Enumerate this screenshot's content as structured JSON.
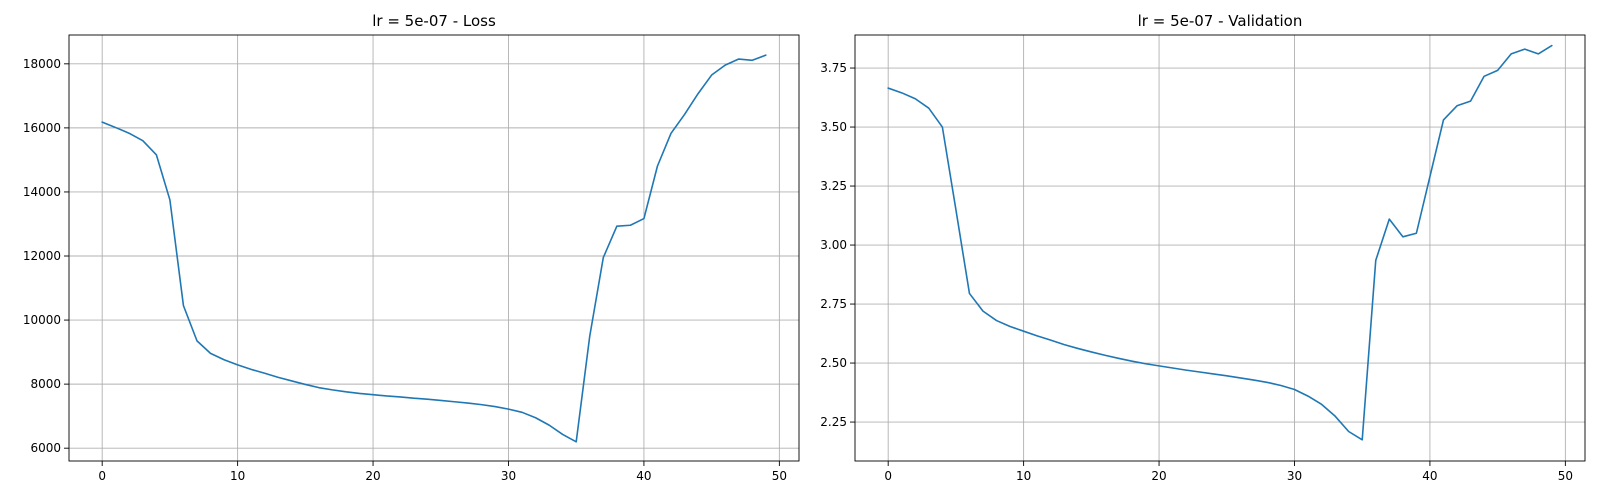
{
  "chart_data": [
    {
      "type": "line",
      "title": "lr = 5e-07 - Loss",
      "xlabel": "",
      "ylabel": "",
      "xlim": [
        -2.45,
        51.45
      ],
      "ylim": [
        5600,
        18900
      ],
      "xticks": [
        0,
        10,
        20,
        30,
        40,
        50
      ],
      "xtick_labels": [
        "0",
        "10",
        "20",
        "30",
        "40",
        "50"
      ],
      "yticks": [
        6000,
        8000,
        10000,
        12000,
        14000,
        16000,
        18000
      ],
      "ytick_labels": [
        "6000",
        "8000",
        "10000",
        "12000",
        "14000",
        "16000",
        "18000"
      ],
      "grid": true,
      "color": "#1f77b4",
      "series": [
        {
          "x": [
            0,
            1,
            2,
            3,
            4,
            5,
            6,
            7,
            8,
            9,
            10,
            11,
            12,
            13,
            14,
            15,
            16,
            17,
            18,
            19,
            20,
            21,
            22,
            23,
            24,
            25,
            26,
            27,
            28,
            29,
            30,
            31,
            32,
            33,
            34,
            35,
            36,
            37,
            38,
            39,
            40,
            41,
            42,
            43,
            44,
            45,
            46,
            47,
            48,
            49
          ],
          "values": [
            16180,
            16010,
            15830,
            15600,
            15160,
            13750,
            10450,
            9350,
            8960,
            8760,
            8600,
            8460,
            8340,
            8210,
            8100,
            7990,
            7890,
            7820,
            7760,
            7710,
            7670,
            7630,
            7600,
            7560,
            7530,
            7490,
            7450,
            7410,
            7360,
            7300,
            7220,
            7120,
            6950,
            6720,
            6430,
            6200,
            9500,
            11950,
            12930,
            12960,
            13170,
            14810,
            15830,
            16420,
            17070,
            17650,
            17960,
            18150,
            18110,
            18270
          ]
        }
      ]
    },
    {
      "type": "line",
      "title": "lr = 5e-07 - Validation",
      "xlabel": "",
      "ylabel": "",
      "xlim": [
        -2.45,
        51.45
      ],
      "ylim": [
        2.085,
        3.89
      ],
      "xticks": [
        0,
        10,
        20,
        30,
        40,
        50
      ],
      "xtick_labels": [
        "0",
        "10",
        "20",
        "30",
        "40",
        "50"
      ],
      "yticks": [
        2.25,
        2.5,
        2.75,
        3.0,
        3.25,
        3.5,
        3.75
      ],
      "ytick_labels": [
        "2.25",
        "2.50",
        "2.75",
        "3.00",
        "3.25",
        "3.50",
        "3.75"
      ],
      "grid": true,
      "color": "#1f77b4",
      "series": [
        {
          "x": [
            0,
            1,
            2,
            3,
            4,
            5,
            6,
            7,
            8,
            9,
            10,
            11,
            12,
            13,
            14,
            15,
            16,
            17,
            18,
            19,
            20,
            21,
            22,
            23,
            24,
            25,
            26,
            27,
            28,
            29,
            30,
            31,
            32,
            33,
            34,
            35,
            36,
            37,
            38,
            39,
            40,
            41,
            42,
            43,
            44,
            45,
            46,
            47,
            48,
            49
          ],
          "values": [
            3.665,
            3.645,
            3.62,
            3.58,
            3.5,
            3.15,
            2.795,
            2.72,
            2.68,
            2.655,
            2.635,
            2.615,
            2.597,
            2.578,
            2.562,
            2.547,
            2.533,
            2.52,
            2.508,
            2.497,
            2.488,
            2.479,
            2.47,
            2.462,
            2.454,
            2.446,
            2.437,
            2.428,
            2.418,
            2.405,
            2.388,
            2.36,
            2.325,
            2.275,
            2.21,
            2.175,
            2.935,
            3.11,
            3.035,
            3.05,
            3.29,
            3.53,
            3.59,
            3.61,
            3.715,
            3.74,
            3.81,
            3.83,
            3.81,
            3.845
          ]
        }
      ]
    }
  ]
}
